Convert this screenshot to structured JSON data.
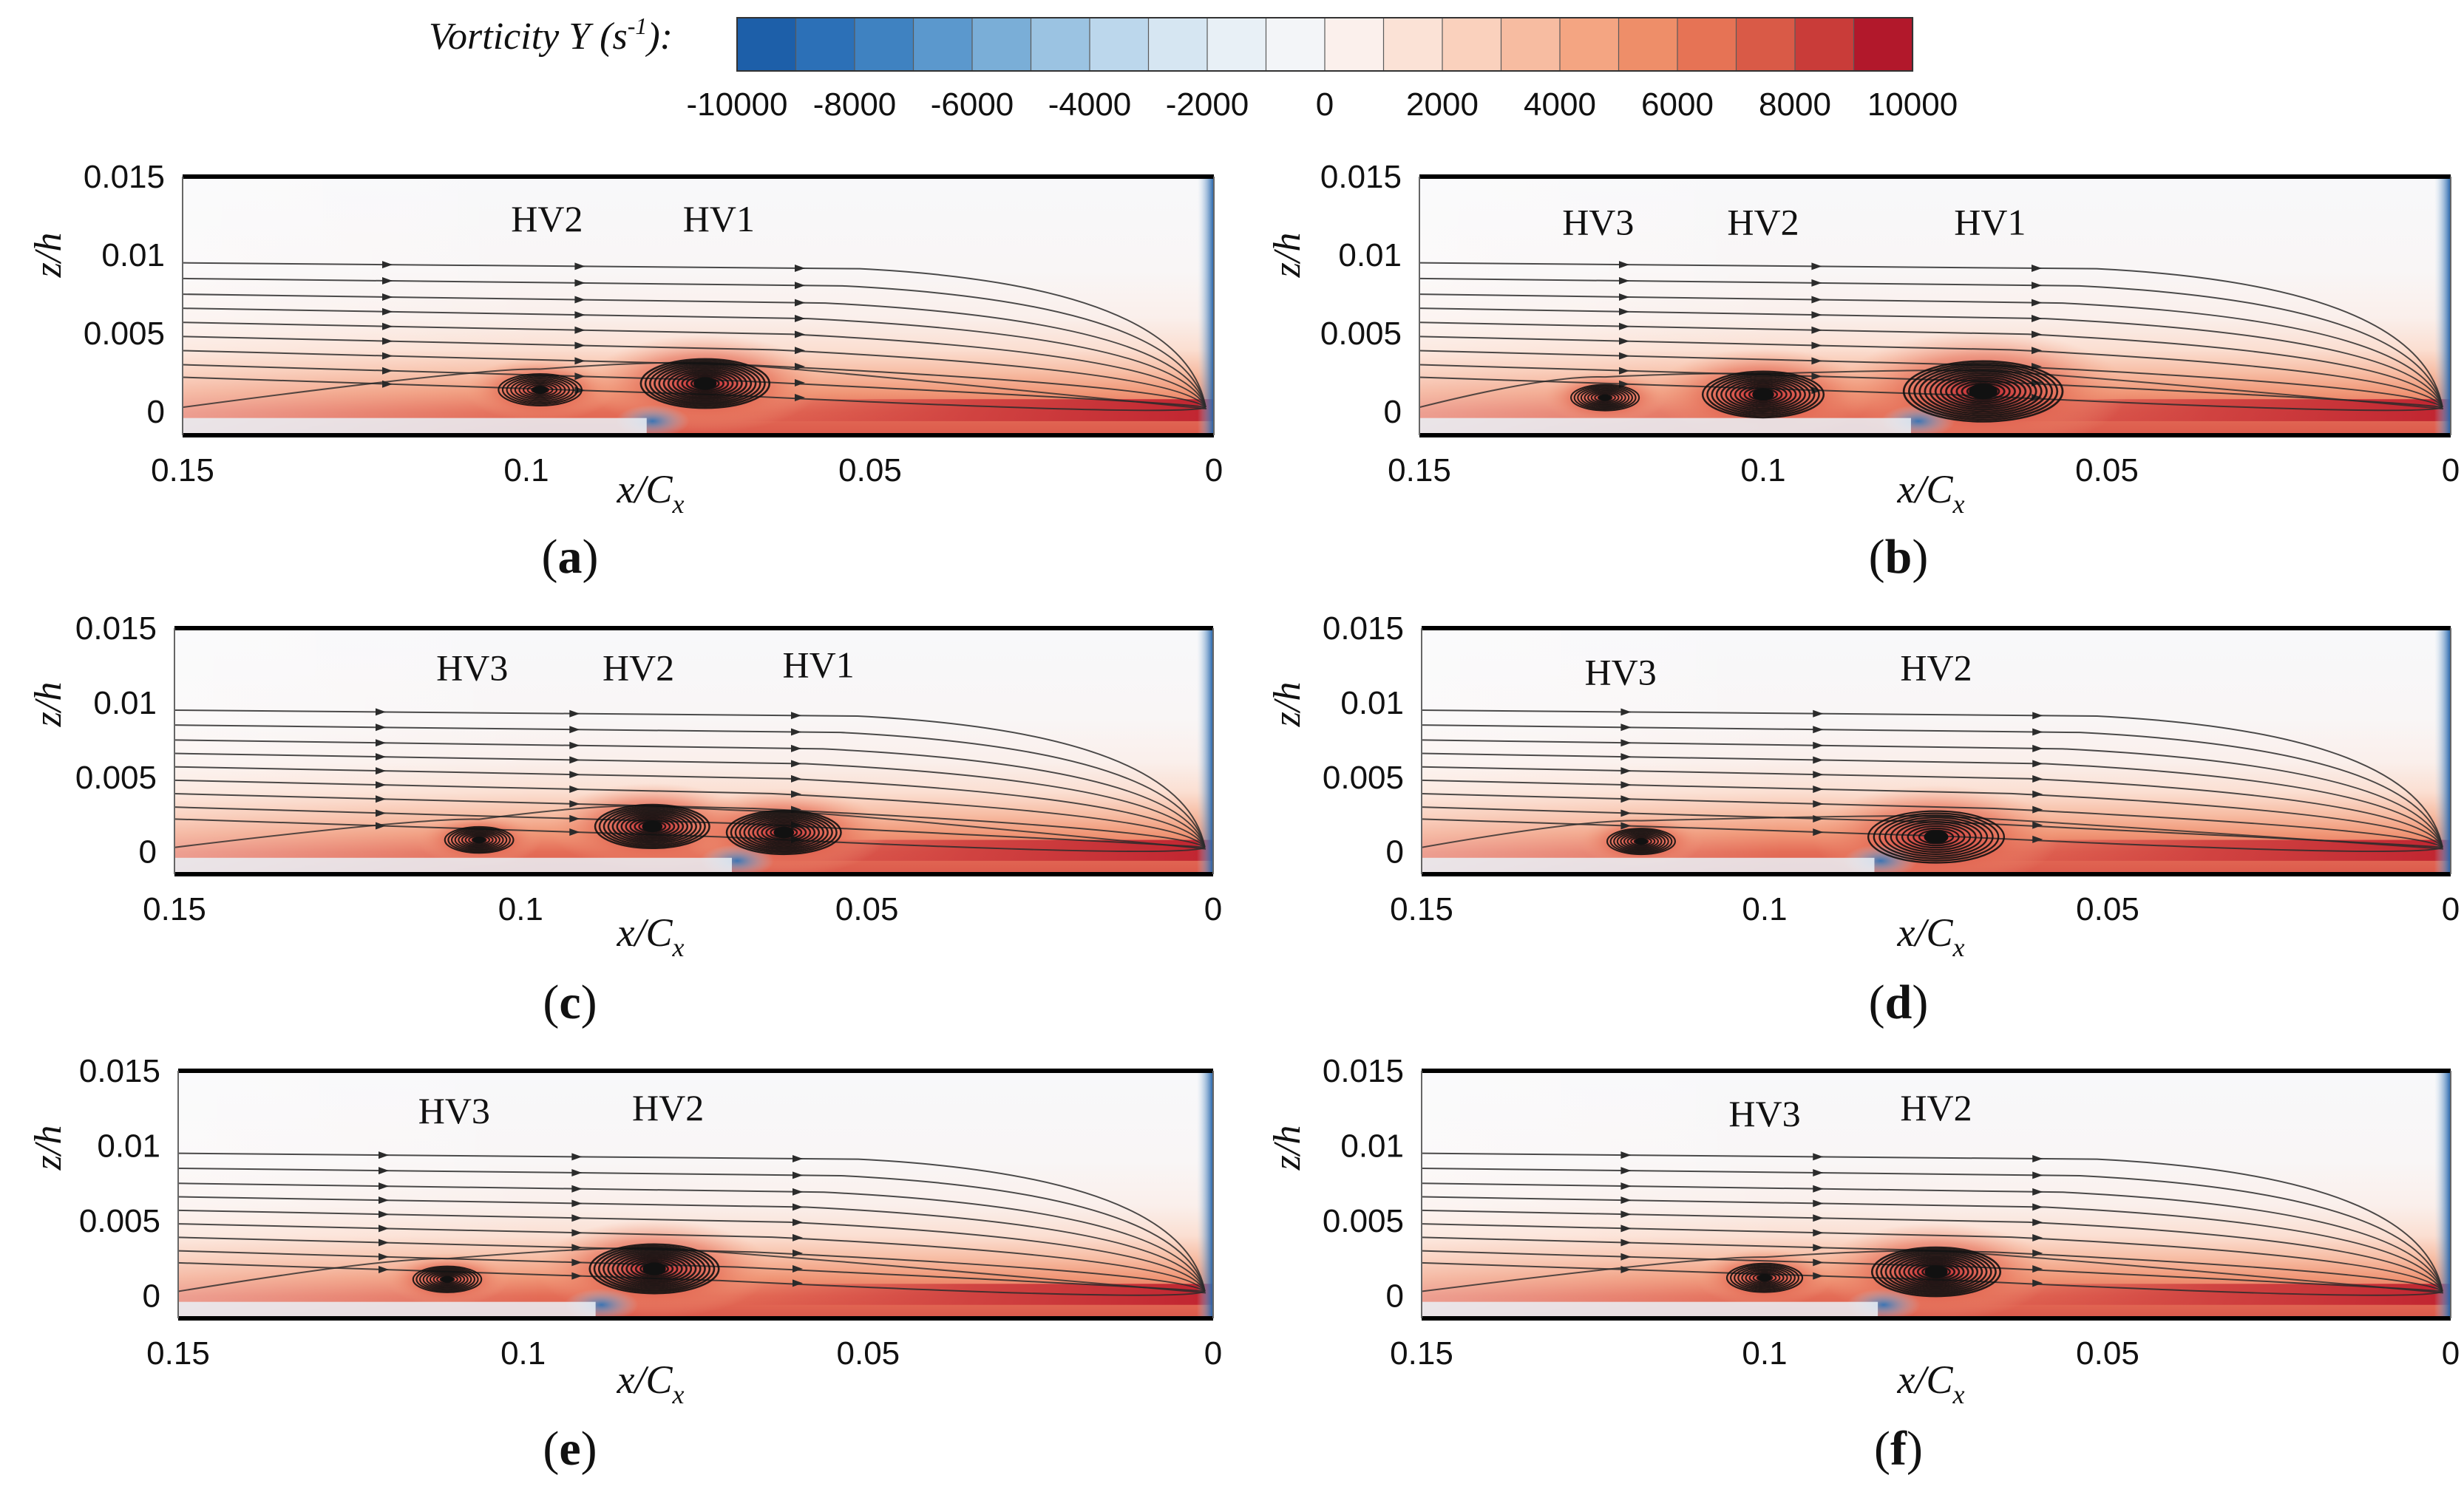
{
  "colorbar": {
    "title": "Vorticity Y (s",
    "title_exp": "-1",
    "title_end": "):",
    "ticks": [
      "-10000",
      "-8000",
      "-6000",
      "-4000",
      "-2000",
      "0",
      "2000",
      "4000",
      "6000",
      "8000",
      "10000"
    ],
    "tick_values": [
      -10000,
      -8000,
      -6000,
      -4000,
      -2000,
      0,
      2000,
      4000,
      6000,
      8000,
      10000
    ],
    "colors": [
      "#1d5fa9",
      "#2c70b7",
      "#3f82c1",
      "#5b98cd",
      "#7aaed7",
      "#9bc3e2",
      "#bcd7ec",
      "#d6e6f2",
      "#e8f0f6",
      "#f3f5f8",
      "#fbf0ec",
      "#fbe2d6",
      "#fad1bd",
      "#f7bca1",
      "#f4a582",
      "#ee8e69",
      "#e67355",
      "#d95a47",
      "#c93c39",
      "#b2182b"
    ]
  },
  "chart_data": [
    {
      "type": "heatmap",
      "panel": "a",
      "caption": "(a)",
      "xlabel": "x/C",
      "xlabel_sub": "x",
      "ylabel": "z/h",
      "xlim": [
        0.15,
        0
      ],
      "ylim": [
        -0.0015,
        0.015
      ],
      "xticks": [
        0.15,
        0.1,
        0.05,
        0
      ],
      "xtick_labels": [
        "0.15",
        "0.1",
        "0.05",
        "0"
      ],
      "yticks": [
        0,
        0.005,
        0.01,
        0.015
      ],
      "ytick_labels": [
        "0",
        "0.005",
        "0.01",
        "0.015"
      ],
      "vortices": [
        {
          "label": "HV2",
          "x": 0.098,
          "z": 0.0014,
          "strength": 0.55,
          "size": 0.0055
        },
        {
          "label": "HV1",
          "x": 0.074,
          "z": 0.0018,
          "strength": 1.0,
          "size": 0.0085
        }
      ],
      "annotations": [
        {
          "text": "HV2",
          "x": 0.097,
          "z": 0.0115
        },
        {
          "text": "HV1",
          "x": 0.072,
          "z": 0.0115
        }
      ]
    },
    {
      "type": "heatmap",
      "panel": "b",
      "caption": "(b)",
      "xlabel": "x/C",
      "xlabel_sub": "x",
      "ylabel": "z/h",
      "xlim": [
        0.15,
        0
      ],
      "ylim": [
        -0.0015,
        0.015
      ],
      "xticks": [
        0.15,
        0.1,
        0.05,
        0
      ],
      "xtick_labels": [
        "0.15",
        "0.1",
        "0.05",
        "0"
      ],
      "yticks": [
        0,
        0.005,
        0.01,
        0.015
      ],
      "ytick_labels": [
        "0",
        "0.005",
        "0.01",
        "0.015"
      ],
      "vortices": [
        {
          "label": "HV3",
          "x": 0.123,
          "z": 0.0009,
          "strength": 0.45,
          "size": 0.0045
        },
        {
          "label": "HV2",
          "x": 0.1,
          "z": 0.0011,
          "strength": 0.9,
          "size": 0.008
        },
        {
          "label": "HV1",
          "x": 0.068,
          "z": 0.0013,
          "strength": 1.1,
          "size": 0.0105
        }
      ],
      "annotations": [
        {
          "text": "HV3",
          "x": 0.124,
          "z": 0.0113
        },
        {
          "text": "HV2",
          "x": 0.1,
          "z": 0.0113
        },
        {
          "text": "HV1",
          "x": 0.067,
          "z": 0.0113
        }
      ]
    },
    {
      "type": "heatmap",
      "panel": "c",
      "caption": "(c)",
      "xlabel": "x/C",
      "xlabel_sub": "x",
      "ylabel": "z/h",
      "xlim": [
        0.15,
        0
      ],
      "ylim": [
        -0.0015,
        0.015
      ],
      "xticks": [
        0.15,
        0.1,
        0.05,
        0
      ],
      "xtick_labels": [
        "0.15",
        "0.1",
        "0.05",
        "0"
      ],
      "yticks": [
        0,
        0.005,
        0.01,
        0.015
      ],
      "ytick_labels": [
        "0",
        "0.005",
        "0.01",
        "0.015"
      ],
      "vortices": [
        {
          "label": "HV3",
          "x": 0.106,
          "z": 0.0008,
          "strength": 0.5,
          "size": 0.0045
        },
        {
          "label": "HV2",
          "x": 0.081,
          "z": 0.0017,
          "strength": 0.9,
          "size": 0.0075
        },
        {
          "label": "HV1",
          "x": 0.062,
          "z": 0.0013,
          "strength": 0.85,
          "size": 0.0075
        }
      ],
      "annotations": [
        {
          "text": "HV3",
          "x": 0.107,
          "z": 0.0115
        },
        {
          "text": "HV2",
          "x": 0.083,
          "z": 0.0115
        },
        {
          "text": "HV1",
          "x": 0.057,
          "z": 0.0117
        }
      ]
    },
    {
      "type": "heatmap",
      "panel": "d",
      "caption": "(d)",
      "xlabel": "x/C",
      "xlabel_sub": "x",
      "ylabel": "z/h",
      "xlim": [
        0.15,
        0
      ],
      "ylim": [
        -0.0015,
        0.015
      ],
      "xticks": [
        0.15,
        0.1,
        0.05,
        0
      ],
      "xtick_labels": [
        "0.15",
        "0.1",
        "0.05",
        "0"
      ],
      "yticks": [
        0,
        0.005,
        0.01,
        0.015
      ],
      "ytick_labels": [
        "0",
        "0.005",
        "0.01",
        "0.015"
      ],
      "vortices": [
        {
          "label": "HV3",
          "x": 0.118,
          "z": 0.0007,
          "strength": 0.5,
          "size": 0.0045
        },
        {
          "label": "HV2",
          "x": 0.075,
          "z": 0.001,
          "strength": 0.75,
          "size": 0.009
        }
      ],
      "annotations": [
        {
          "text": "HV3",
          "x": 0.121,
          "z": 0.0112
        },
        {
          "text": "HV2",
          "x": 0.075,
          "z": 0.0115
        }
      ]
    },
    {
      "type": "heatmap",
      "panel": "e",
      "caption": "(e)",
      "xlabel": "x/C",
      "xlabel_sub": "x",
      "ylabel": "z/h",
      "xlim": [
        0.15,
        0
      ],
      "ylim": [
        -0.0015,
        0.015
      ],
      "xticks": [
        0.15,
        0.1,
        0.05,
        0
      ],
      "xtick_labels": [
        "0.15",
        "0.1",
        "0.05",
        "0"
      ],
      "yticks": [
        0,
        0.005,
        0.01,
        0.015
      ],
      "ytick_labels": [
        "0",
        "0.005",
        "0.01",
        "0.015"
      ],
      "vortices": [
        {
          "label": "HV3",
          "x": 0.111,
          "z": 0.0011,
          "strength": 0.5,
          "size": 0.0045
        },
        {
          "label": "HV2",
          "x": 0.081,
          "z": 0.0018,
          "strength": 1.0,
          "size": 0.0085
        }
      ],
      "annotations": [
        {
          "text": "HV3",
          "x": 0.11,
          "z": 0.0115
        },
        {
          "text": "HV2",
          "x": 0.079,
          "z": 0.0117
        }
      ]
    },
    {
      "type": "heatmap",
      "panel": "f",
      "caption": "(f)",
      "xlabel": "x/C",
      "xlabel_sub": "x",
      "ylabel": "z/h",
      "xlim": [
        0.15,
        0
      ],
      "ylim": [
        -0.0015,
        0.015
      ],
      "xticks": [
        0.15,
        0.1,
        0.05,
        0
      ],
      "xtick_labels": [
        "0.15",
        "0.1",
        "0.05",
        "0"
      ],
      "yticks": [
        0,
        0.005,
        0.01,
        0.015
      ],
      "ytick_labels": [
        "0",
        "0.005",
        "0.01",
        "0.015"
      ],
      "vortices": [
        {
          "label": "HV3",
          "x": 0.1,
          "z": 0.0012,
          "strength": 0.55,
          "size": 0.005
        },
        {
          "label": "HV2",
          "x": 0.075,
          "z": 0.0016,
          "strength": 1.0,
          "size": 0.0085
        }
      ],
      "annotations": [
        {
          "text": "HV3",
          "x": 0.1,
          "z": 0.0113
        },
        {
          "text": "HV2",
          "x": 0.075,
          "z": 0.0117
        }
      ]
    }
  ]
}
